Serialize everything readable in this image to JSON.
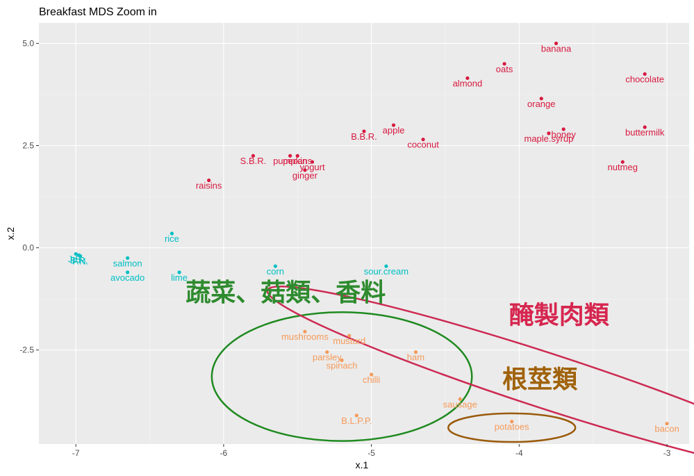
{
  "chart_data": {
    "type": "scatter",
    "title": "Breakfast MDS Zoom in",
    "xlabel": "x.1",
    "ylabel": "x.2",
    "xlim": [
      -7.25,
      -2.85
    ],
    "ylim": [
      -4.8,
      5.5
    ],
    "x_ticks": [
      -7,
      -6,
      -5,
      -4,
      -3
    ],
    "y_ticks": [
      -2.5,
      0.0,
      2.5,
      5.0
    ],
    "x_tick_labels": [
      "-7",
      "-6",
      "-5",
      "-4",
      "-3"
    ],
    "y_tick_labels": [
      "-2.5",
      "0.0",
      "2.5",
      "5.0"
    ],
    "grid": true,
    "panel_background": "#ebebeb",
    "series": [
      {
        "color": "#d7193f",
        "points": [
          {
            "x": -3.75,
            "y": 5.0,
            "label": "banana"
          },
          {
            "x": -4.1,
            "y": 4.5,
            "label": "oats"
          },
          {
            "x": -4.35,
            "y": 4.15,
            "label": "almond"
          },
          {
            "x": -3.15,
            "y": 4.25,
            "label": "chocolate"
          },
          {
            "x": -3.85,
            "y": 3.65,
            "label": "orange"
          },
          {
            "x": -5.05,
            "y": 2.85,
            "label": "B.B.R."
          },
          {
            "x": -4.85,
            "y": 3.0,
            "label": "apple"
          },
          {
            "x": -4.65,
            "y": 2.65,
            "label": "coconut"
          },
          {
            "x": -3.7,
            "y": 2.9,
            "label": "honey"
          },
          {
            "x": -3.8,
            "y": 2.8,
            "label": "maple.syrup"
          },
          {
            "x": -3.15,
            "y": 2.95,
            "label": "buttermilk"
          },
          {
            "x": -3.3,
            "y": 2.1,
            "label": "nutmeg"
          },
          {
            "x": -5.8,
            "y": 2.25,
            "label": "S.B.R."
          },
          {
            "x": -5.55,
            "y": 2.25,
            "label": "pumpkin"
          },
          {
            "x": -5.5,
            "y": 2.25,
            "label": "pecans"
          },
          {
            "x": -5.4,
            "y": 2.1,
            "label": "yogurt"
          },
          {
            "x": -5.45,
            "y": 1.9,
            "label": "ginger"
          },
          {
            "x": -6.1,
            "y": 1.65,
            "label": "raisins"
          }
        ]
      },
      {
        "color": "#00bfc4",
        "points": [
          {
            "x": -7.0,
            "y": -0.15,
            "label": "J.B."
          },
          {
            "x": -6.98,
            "y": -0.18,
            "label": "B.R."
          },
          {
            "x": -6.97,
            "y": -0.2,
            "label": "F.N."
          },
          {
            "x": -6.65,
            "y": -0.25,
            "label": "salmon"
          },
          {
            "x": -6.65,
            "y": -0.6,
            "label": "avocado"
          },
          {
            "x": -6.35,
            "y": 0.35,
            "label": "rice"
          },
          {
            "x": -6.3,
            "y": -0.6,
            "label": "lime"
          },
          {
            "x": -5.65,
            "y": -0.45,
            "label": "corn"
          },
          {
            "x": -4.9,
            "y": -0.45,
            "label": "sour.cream"
          }
        ]
      },
      {
        "color": "#f59a5a",
        "points": [
          {
            "x": -5.45,
            "y": -2.05,
            "label": "mushrooms"
          },
          {
            "x": -5.15,
            "y": -2.15,
            "label": "mustard"
          },
          {
            "x": -5.3,
            "y": -2.55,
            "label": "parsley"
          },
          {
            "x": -5.2,
            "y": -2.75,
            "label": "spinach"
          },
          {
            "x": -5.0,
            "y": -3.1,
            "label": "chilli"
          },
          {
            "x": -5.1,
            "y": -4.1,
            "label": "B.L.P.P."
          },
          {
            "x": -4.7,
            "y": -2.55,
            "label": "ham"
          },
          {
            "x": -4.4,
            "y": -3.7,
            "label": "sausage"
          },
          {
            "x": -4.05,
            "y": -4.25,
            "label": "potatoes"
          },
          {
            "x": -3.0,
            "y": -4.3,
            "label": "bacon"
          }
        ]
      }
    ],
    "annotations": [
      {
        "text": "蔬菜、菇類、香料",
        "x": -5.58,
        "y": -1.3,
        "color": "#2e8b2e"
      },
      {
        "text": "醃製肉類",
        "x": -3.73,
        "y": -1.85,
        "color": "#d6264f"
      },
      {
        "text": "根莖類",
        "x": -3.86,
        "y": -3.42,
        "color": "#a0620a"
      }
    ],
    "ellipses": [
      {
        "cx": -5.2,
        "cy": -3.15,
        "rx": 0.88,
        "ry": 3.15,
        "color": "#1f8a1f"
      },
      {
        "cx": -3.82,
        "cy": -3.25,
        "rx": 1.98,
        "ry": 1.35,
        "angle": 18,
        "color": "#cc2a52"
      },
      {
        "cx": -4.05,
        "cy": -4.4,
        "rx": 0.43,
        "ry": 0.7,
        "color": "#9a5a0a"
      }
    ]
  }
}
